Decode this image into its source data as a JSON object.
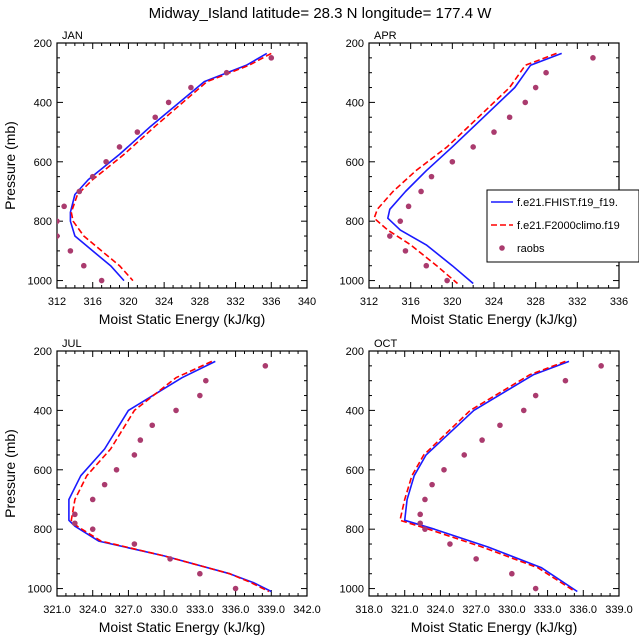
{
  "suptitle": "Midway_Island  latitude= 28.3 N longitude= 177.4 W",
  "colors": {
    "model1": "#1a1aff",
    "model2": "#ff0000",
    "obs": "#aa3b6e",
    "frame": "#000000"
  },
  "chart_data": [
    {
      "type": "line",
      "title": "JAN",
      "xlabel": "Moist Static Energy (kJ/kg)",
      "ylabel": "Pressure (mb)",
      "xlim": [
        312,
        340
      ],
      "ylim": [
        1025,
        200
      ],
      "xticks": [
        312,
        316,
        320,
        324,
        328,
        332,
        336,
        340
      ],
      "xtick_labels": [
        "312",
        "316",
        "320",
        "324",
        "328",
        "332",
        "336",
        "340"
      ],
      "yticks": [
        200,
        400,
        600,
        800,
        1000
      ],
      "ytick_labels": [
        "200",
        "400",
        "600",
        "800",
        "1000"
      ],
      "series": [
        {
          "name": "",
          "kind": "line",
          "color": "blue",
          "x": [
            335.5,
            333.2,
            328.5,
            322.5,
            319.0,
            315.5,
            314.0,
            313.5,
            313.5,
            314.0,
            316.0,
            318.0,
            319.5
          ],
          "y": [
            235,
            275,
            330,
            480,
            575,
            660,
            710,
            770,
            800,
            850,
            900,
            950,
            1000
          ]
        },
        {
          "name": "",
          "kind": "line",
          "color": "red",
          "x": [
            336.0,
            333.5,
            328.8,
            323.0,
            319.5,
            316.0,
            314.3,
            313.6,
            313.8,
            315.0,
            317.0,
            319.0,
            320.5
          ],
          "y": [
            235,
            275,
            330,
            480,
            575,
            660,
            710,
            770,
            800,
            850,
            900,
            950,
            1000
          ]
        },
        {
          "name": "",
          "kind": "scatter",
          "color": "obs",
          "x": [
            336.0,
            331.0,
            327.0,
            324.5,
            323.0,
            321.0,
            319.0,
            317.5,
            316.0,
            314.5,
            312.8,
            312.0,
            312.0,
            313.5,
            315.0,
            317.0
          ],
          "y": [
            250,
            300,
            350,
            400,
            450,
            500,
            550,
            600,
            650,
            700,
            750,
            800,
            850,
            900,
            950,
            1000
          ]
        }
      ]
    },
    {
      "type": "line",
      "title": "APR",
      "xlabel": "Moist Static Energy (kJ/kg)",
      "ylabel": "",
      "xlim": [
        312,
        336
      ],
      "ylim": [
        1025,
        200
      ],
      "xticks": [
        312,
        316,
        320,
        324,
        328,
        332,
        336
      ],
      "xtick_labels": [
        "312",
        "316",
        "320",
        "324",
        "328",
        "332",
        "336"
      ],
      "yticks": [
        200,
        400,
        600,
        800,
        1000
      ],
      "ytick_labels": [
        "200",
        "400",
        "600",
        "800",
        "1000"
      ],
      "legend": {
        "placement": "right",
        "entries": [
          "f.e21.FHIST.f19_f19.",
          "f.e21.F2000climo.f19",
          "raobs"
        ]
      },
      "series": [
        {
          "name": "f.e21.FHIST.f19_f19.",
          "kind": "line",
          "color": "blue",
          "x": [
            330.5,
            327.5,
            326.0,
            323.0,
            320.0,
            317.5,
            315.5,
            314.0,
            313.8,
            315.0,
            317.5,
            320.0,
            322.0
          ],
          "y": [
            235,
            275,
            350,
            450,
            550,
            630,
            700,
            760,
            790,
            830,
            880,
            950,
            1010
          ]
        },
        {
          "name": "f.e21.F2000climo.f19",
          "kind": "line",
          "color": "red",
          "x": [
            330.0,
            327.0,
            325.5,
            322.5,
            319.5,
            316.5,
            314.3,
            312.8,
            312.5,
            313.8,
            316.0,
            318.5,
            320.5
          ],
          "y": [
            235,
            275,
            350,
            450,
            550,
            630,
            700,
            760,
            790,
            830,
            880,
            950,
            1010
          ]
        },
        {
          "name": "raobs",
          "kind": "scatter",
          "color": "obs",
          "x": [
            333.5,
            329.0,
            328.0,
            327.0,
            325.5,
            324.0,
            322.0,
            320.0,
            318.0,
            317.0,
            315.8,
            315.0,
            314.0,
            315.5,
            317.5,
            319.5
          ],
          "y": [
            250,
            300,
            350,
            400,
            450,
            500,
            550,
            600,
            650,
            700,
            750,
            800,
            850,
            900,
            950,
            1000
          ]
        }
      ]
    },
    {
      "type": "line",
      "title": "JUL",
      "xlabel": "Moist Static Energy (kJ/kg)",
      "ylabel": "Pressure (mb)",
      "xlim": [
        321,
        342
      ],
      "ylim": [
        1025,
        200
      ],
      "xticks": [
        321,
        324,
        327,
        330,
        333,
        336,
        339,
        342
      ],
      "xtick_labels": [
        "321.0",
        "324.0",
        "327.0",
        "330.0",
        "333.0",
        "336.0",
        "339.0",
        "342.0"
      ],
      "yticks": [
        200,
        400,
        600,
        800,
        1000
      ],
      "ytick_labels": [
        "200",
        "400",
        "600",
        "800",
        "1000"
      ],
      "series": [
        {
          "name": "",
          "kind": "line",
          "color": "blue",
          "x": [
            334.3,
            331.5,
            327.0,
            325.0,
            323.0,
            322.0,
            322.0,
            322.5,
            324.5,
            330.0,
            335.5,
            337.5,
            339.0
          ],
          "y": [
            235,
            290,
            400,
            530,
            620,
            700,
            770,
            790,
            840,
            890,
            950,
            980,
            1010
          ]
        },
        {
          "name": "",
          "kind": "line",
          "color": "red",
          "x": [
            334.0,
            331.0,
            327.5,
            325.5,
            323.5,
            322.5,
            322.2,
            322.7,
            324.7,
            330.0,
            335.5,
            337.3,
            338.8
          ],
          "y": [
            235,
            290,
            400,
            530,
            620,
            700,
            770,
            790,
            840,
            890,
            950,
            980,
            1010
          ]
        },
        {
          "name": "",
          "kind": "scatter",
          "color": "obs",
          "x": [
            338.5,
            333.5,
            333.0,
            331.0,
            329.0,
            328.0,
            327.5,
            326.0,
            325.0,
            324.0,
            322.5,
            322.5,
            324.0,
            327.5,
            330.5,
            333.0,
            336.0
          ],
          "y": [
            250,
            300,
            350,
            400,
            450,
            500,
            550,
            600,
            650,
            700,
            750,
            780,
            800,
            850,
            900,
            950,
            1000
          ]
        }
      ]
    },
    {
      "type": "line",
      "title": "OCT",
      "xlabel": "Moist Static Energy (kJ/kg)",
      "ylabel": "",
      "xlim": [
        318,
        339
      ],
      "ylim": [
        1025,
        200
      ],
      "xticks": [
        318,
        321,
        324,
        327,
        330,
        333,
        336,
        339
      ],
      "xtick_labels": [
        "318.0",
        "321.0",
        "324.0",
        "327.0",
        "330.0",
        "333.0",
        "336.0",
        "339.0"
      ],
      "yticks": [
        200,
        400,
        600,
        800,
        1000
      ],
      "ytick_labels": [
        "200",
        "400",
        "600",
        "800",
        "1000"
      ],
      "series": [
        {
          "name": "",
          "kind": "line",
          "color": "blue",
          "x": [
            334.8,
            331.8,
            326.8,
            322.8,
            321.8,
            321.2,
            321.0,
            323.5,
            328.0,
            332.5,
            335.5
          ],
          "y": [
            235,
            280,
            400,
            550,
            620,
            700,
            770,
            800,
            860,
            930,
            1010
          ]
        },
        {
          "name": "",
          "kind": "line",
          "color": "red",
          "x": [
            334.5,
            331.5,
            326.5,
            322.6,
            321.6,
            321.0,
            320.6,
            323.0,
            327.5,
            332.2,
            335.3
          ],
          "y": [
            235,
            280,
            400,
            550,
            620,
            700,
            770,
            800,
            860,
            930,
            1010
          ]
        },
        {
          "name": "",
          "kind": "scatter",
          "color": "obs",
          "x": [
            337.5,
            334.5,
            332.0,
            331.0,
            329.0,
            327.5,
            326.0,
            324.3,
            323.3,
            322.7,
            322.3,
            322.3,
            322.7,
            324.8,
            327.0,
            330.0,
            332.0
          ],
          "y": [
            250,
            300,
            350,
            400,
            450,
            500,
            550,
            600,
            650,
            700,
            750,
            780,
            800,
            850,
            900,
            950,
            1000
          ]
        }
      ]
    }
  ]
}
